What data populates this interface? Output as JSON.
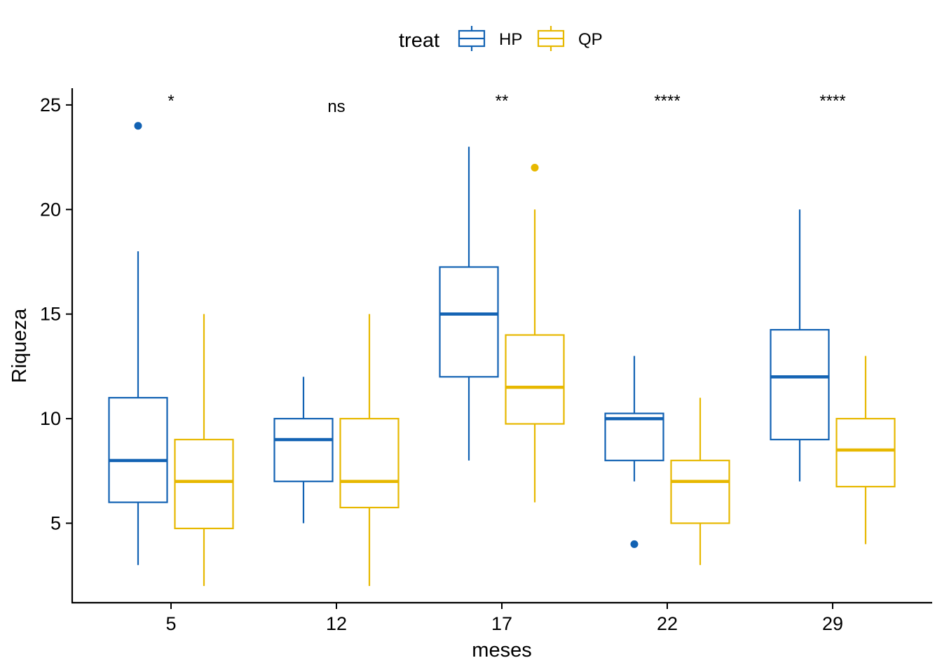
{
  "chart_data": {
    "type": "box",
    "xlabel": "meses",
    "ylabel": "Riqueza",
    "ylim": [
      1.2,
      25.8
    ],
    "yticks": [
      5,
      10,
      15,
      20,
      25
    ],
    "categories": [
      "5",
      "12",
      "17",
      "22",
      "29"
    ],
    "legend": {
      "title": "treat",
      "position": "top",
      "entries": [
        "HP",
        "QP"
      ]
    },
    "significance": [
      "*",
      "ns",
      "**",
      "****",
      "****"
    ],
    "series": [
      {
        "name": "HP",
        "color": "#1262b3",
        "boxes": [
          {
            "whisker_low": 3,
            "q1": 6,
            "median": 8,
            "q3": 11,
            "whisker_high": 18,
            "outliers": [
              24
            ]
          },
          {
            "whisker_low": 5,
            "q1": 7,
            "median": 9,
            "q3": 10,
            "whisker_high": 12,
            "outliers": []
          },
          {
            "whisker_low": 8,
            "q1": 12,
            "median": 15,
            "q3": 17.25,
            "whisker_high": 23,
            "outliers": []
          },
          {
            "whisker_low": 7,
            "q1": 8,
            "median": 10,
            "q3": 10.25,
            "whisker_high": 13,
            "outliers": [
              4
            ]
          },
          {
            "whisker_low": 7,
            "q1": 9,
            "median": 12,
            "q3": 14.25,
            "whisker_high": 20,
            "outliers": []
          }
        ]
      },
      {
        "name": "QP",
        "color": "#e7b800",
        "boxes": [
          {
            "whisker_low": 2,
            "q1": 4.75,
            "median": 7,
            "q3": 9,
            "whisker_high": 15,
            "outliers": []
          },
          {
            "whisker_low": 2,
            "q1": 5.75,
            "median": 7,
            "q3": 10,
            "whisker_high": 15,
            "outliers": []
          },
          {
            "whisker_low": 6,
            "q1": 9.75,
            "median": 11.5,
            "q3": 14,
            "whisker_high": 20,
            "outliers": [
              22
            ]
          },
          {
            "whisker_low": 3,
            "q1": 5,
            "median": 7,
            "q3": 8,
            "whisker_high": 11,
            "outliers": []
          },
          {
            "whisker_low": 4,
            "q1": 6.75,
            "median": 8.5,
            "q3": 10,
            "whisker_high": 13,
            "outliers": []
          }
        ]
      }
    ],
    "grid": false
  }
}
